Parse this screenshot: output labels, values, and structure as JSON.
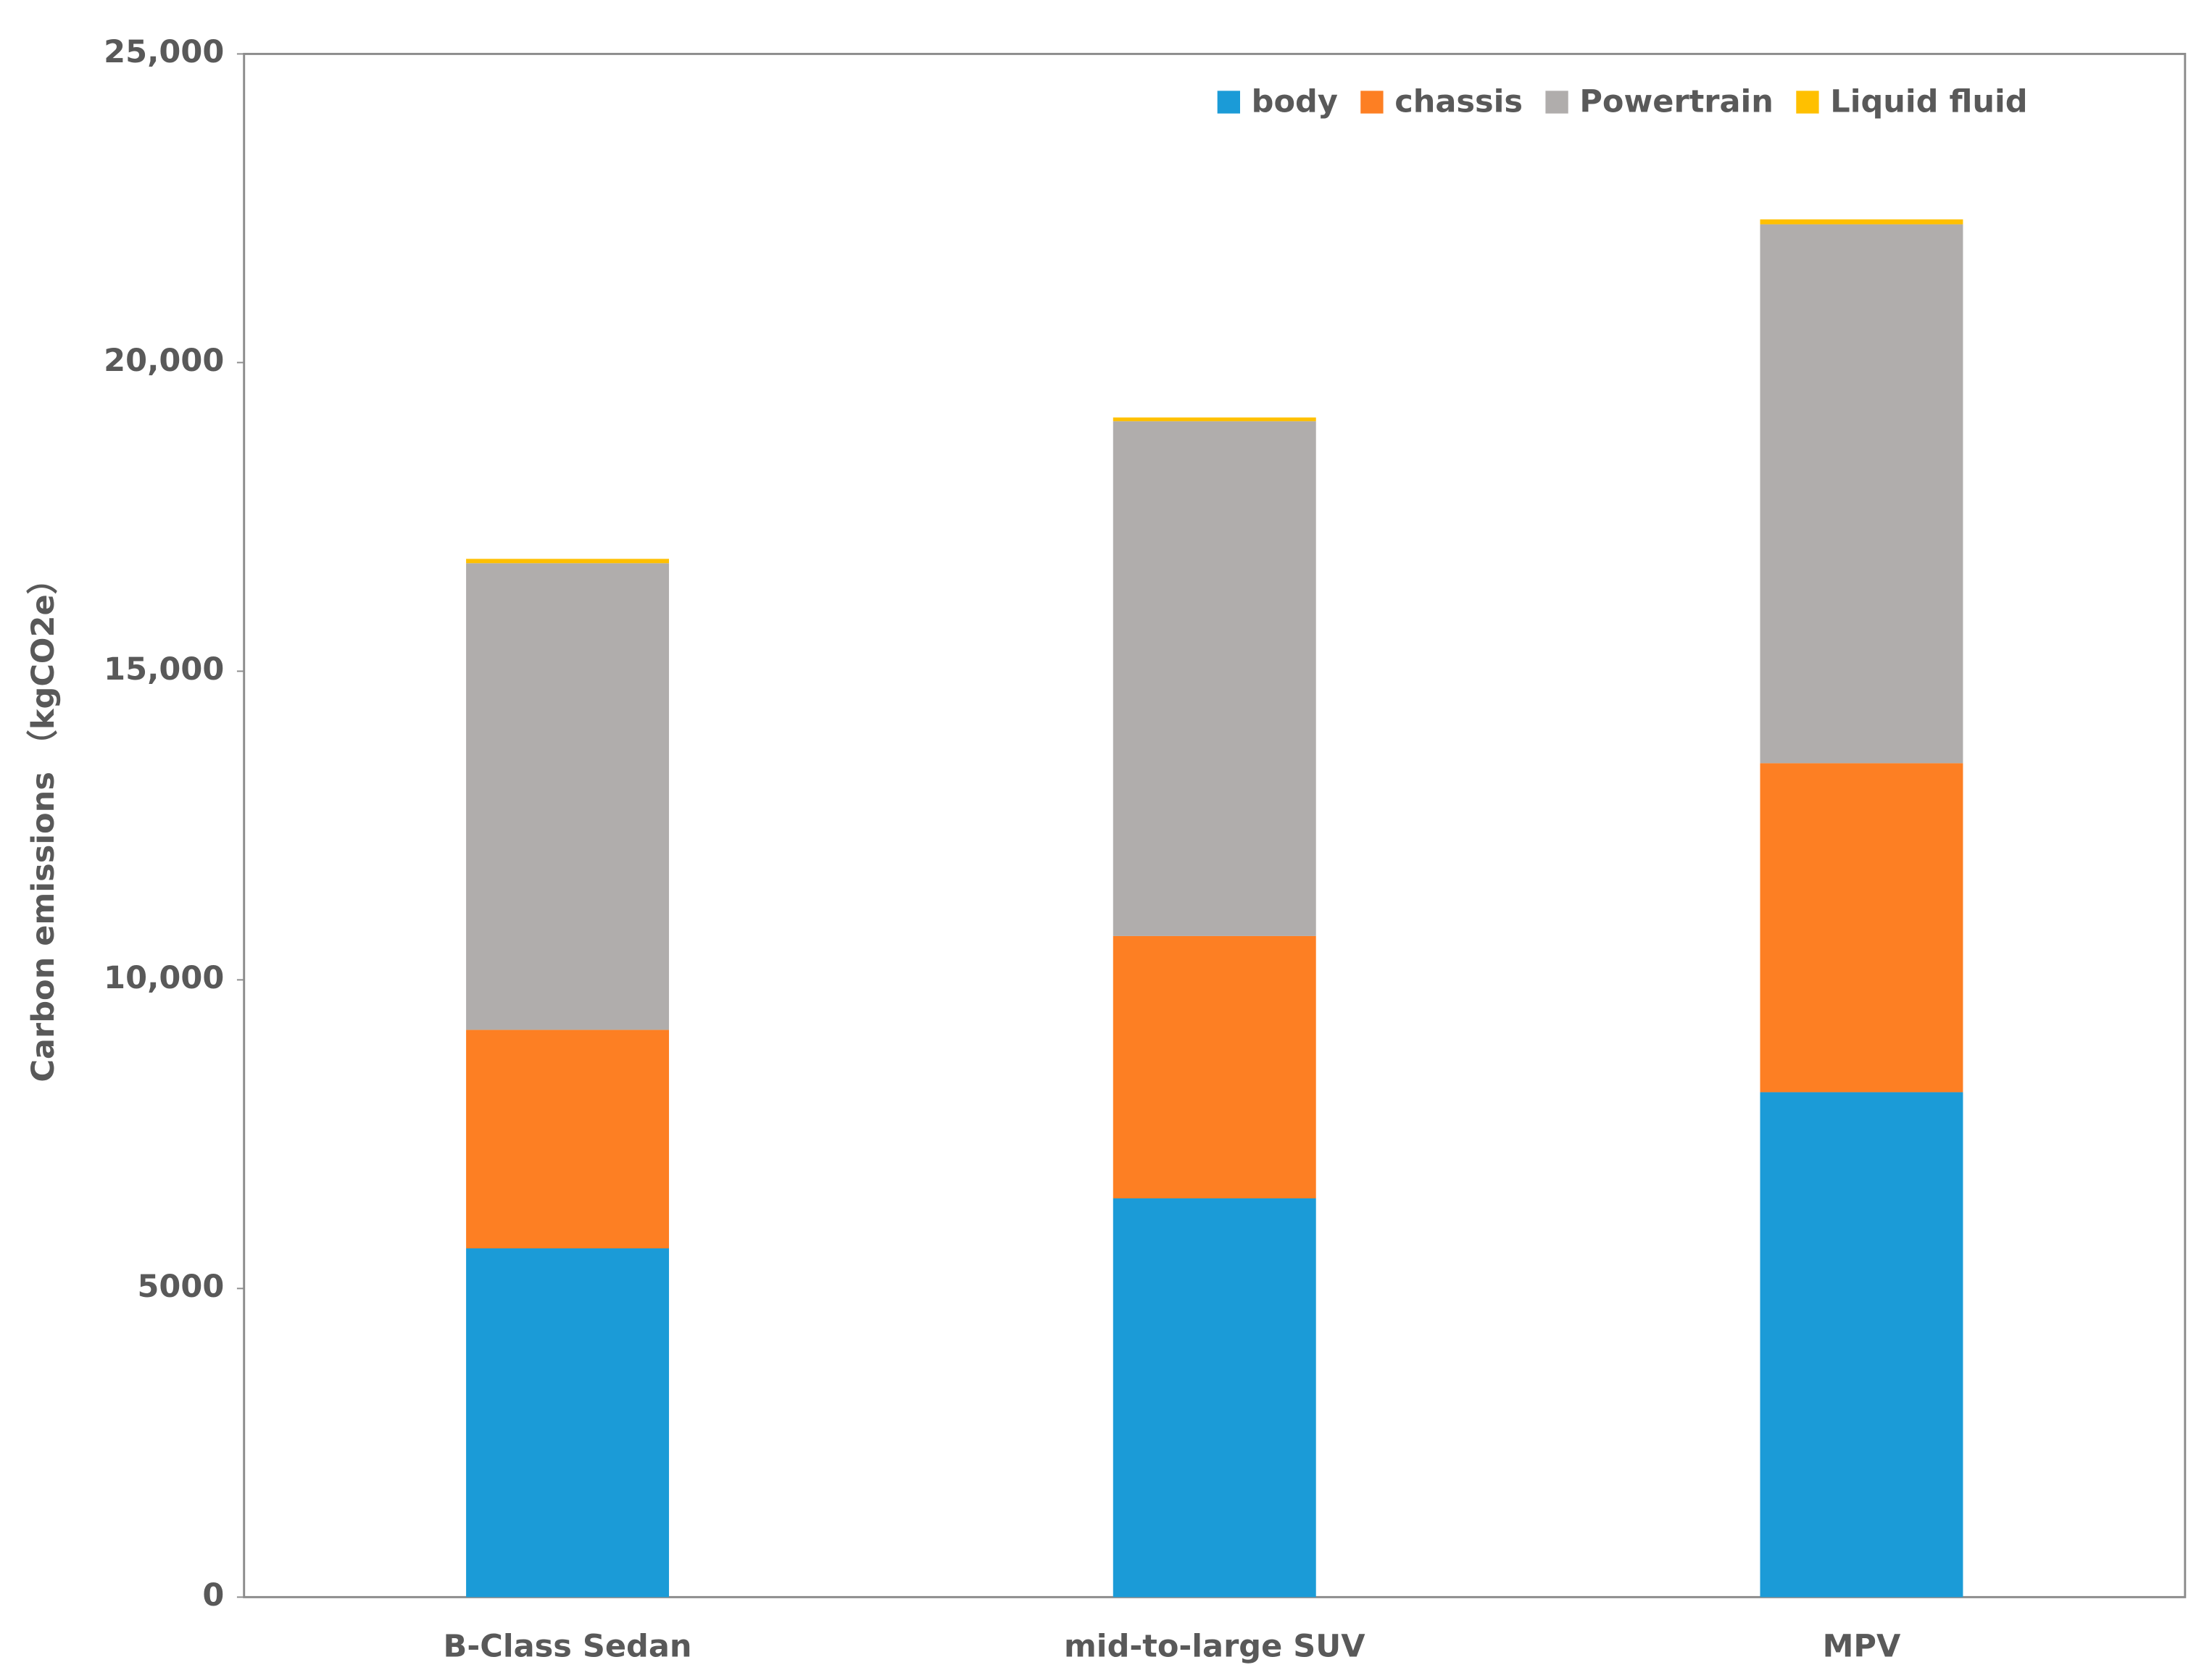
{
  "chart_data": {
    "type": "stacked_bar",
    "y_label": "Carbon emissions （kgCO2e）",
    "categories": [
      "B-Class Sedan",
      "mid-to-large SUV",
      "MPV"
    ],
    "series": [
      {
        "name": "body",
        "color": "#1b9bd7",
        "values": [
          5650,
          6460,
          8180
        ]
      },
      {
        "name": "chassis",
        "color": "#fd7f23",
        "values": [
          3540,
          4250,
          5330
        ]
      },
      {
        "name": "Powertrain",
        "color": "#b0adac",
        "values": [
          7560,
          8340,
          8730
        ]
      },
      {
        "name": "Liquid fluid",
        "color": "#ffc000",
        "values": [
          70,
          60,
          80
        ]
      }
    ],
    "ylim": [
      0,
      25000
    ],
    "yticks": [
      0,
      5000,
      {
        "value": 10000,
        "label": "10,000"
      },
      {
        "value": 15000,
        "label": "15,000"
      },
      {
        "value": 20000,
        "label": "20,000"
      },
      {
        "value": 25000,
        "label": "25,000"
      }
    ],
    "legend": "top-right"
  }
}
